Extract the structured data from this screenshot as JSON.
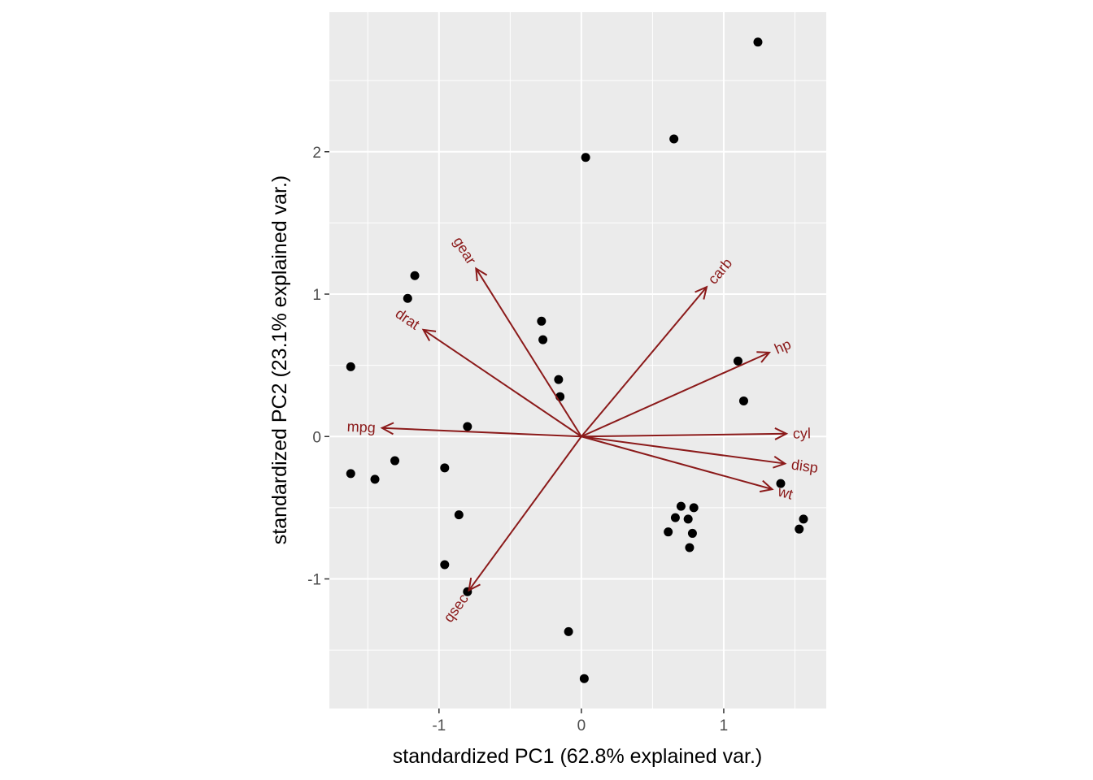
{
  "chart_data": {
    "type": "scatter",
    "subtype": "pca-biplot",
    "title": "",
    "xlabel": "standardized PC1 (62.8% explained var.)",
    "ylabel": "standardized PC2 (23.1% explained var.)",
    "xlim": [
      -1.77,
      1.72
    ],
    "ylim": [
      -1.91,
      2.98
    ],
    "xticks": [
      {
        "value": -1,
        "label": "-1"
      },
      {
        "value": 0,
        "label": "0"
      },
      {
        "value": 1,
        "label": "1"
      }
    ],
    "yticks": [
      {
        "value": -1,
        "label": "-1"
      },
      {
        "value": 0,
        "label": "0"
      },
      {
        "value": 1,
        "label": "1"
      },
      {
        "value": 2,
        "label": "2"
      }
    ],
    "grid": true,
    "colors": {
      "panel": "#ebebeb",
      "grid": "#ffffff",
      "points": "#000000",
      "arrows": "#8b1a1a",
      "tick": "#333333",
      "tick_label": "#4d4d4d"
    },
    "points": [
      {
        "x": 1.24,
        "y": 2.77
      },
      {
        "x": 0.65,
        "y": 2.09
      },
      {
        "x": 0.03,
        "y": 1.96
      },
      {
        "x": -1.17,
        "y": 1.13
      },
      {
        "x": -1.22,
        "y": 0.97
      },
      {
        "x": -0.28,
        "y": 0.81
      },
      {
        "x": -0.27,
        "y": 0.68
      },
      {
        "x": -1.62,
        "y": 0.49
      },
      {
        "x": -0.16,
        "y": 0.4
      },
      {
        "x": -0.15,
        "y": 0.28
      },
      {
        "x": 1.1,
        "y": 0.53
      },
      {
        "x": 1.14,
        "y": 0.25
      },
      {
        "x": -0.8,
        "y": 0.07
      },
      {
        "x": -1.31,
        "y": -0.17
      },
      {
        "x": -0.96,
        "y": -0.22
      },
      {
        "x": -1.62,
        "y": -0.26
      },
      {
        "x": -1.45,
        "y": -0.3
      },
      {
        "x": 1.4,
        "y": -0.33
      },
      {
        "x": -0.86,
        "y": -0.55
      },
      {
        "x": 0.7,
        "y": -0.49
      },
      {
        "x": 0.79,
        "y": -0.5
      },
      {
        "x": 0.66,
        "y": -0.57
      },
      {
        "x": 0.75,
        "y": -0.58
      },
      {
        "x": 1.56,
        "y": -0.58
      },
      {
        "x": 1.53,
        "y": -0.65
      },
      {
        "x": 0.61,
        "y": -0.67
      },
      {
        "x": 0.78,
        "y": -0.68
      },
      {
        "x": 0.76,
        "y": -0.78
      },
      {
        "x": -0.96,
        "y": -0.9
      },
      {
        "x": -0.8,
        "y": -1.09
      },
      {
        "x": -0.09,
        "y": -1.37
      },
      {
        "x": 0.02,
        "y": -1.7
      }
    ],
    "loadings": [
      {
        "name": "mpg",
        "x": -1.4,
        "y": 0.06
      },
      {
        "name": "cyl",
        "x": 1.44,
        "y": 0.02
      },
      {
        "name": "disp",
        "x": 1.43,
        "y": -0.19
      },
      {
        "name": "hp",
        "x": 1.32,
        "y": 0.59
      },
      {
        "name": "drat",
        "x": -1.11,
        "y": 0.75
      },
      {
        "name": "wt",
        "x": 1.34,
        "y": -0.37
      },
      {
        "name": "qsec",
        "x": -0.79,
        "y": -1.08
      },
      {
        "name": "gear",
        "x": -0.74,
        "y": 1.18
      },
      {
        "name": "carb",
        "x": 0.88,
        "y": 1.05
      }
    ]
  }
}
